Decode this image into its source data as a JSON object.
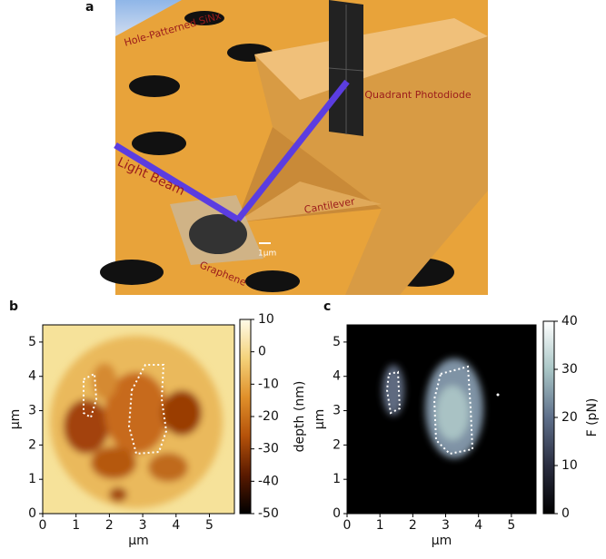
{
  "panel_labels": [
    "a",
    "b",
    "c"
  ],
  "illustration": {
    "labels": [
      "Hole-Patterned SiNx",
      "Quadrant Photodiode",
      "Light Beam",
      "Cantilever",
      "Graphene",
      "1µm"
    ]
  },
  "chart_data": [
    {
      "type": "heatmap",
      "xlabel": "µm",
      "ylabel": "µm",
      "xlim": [
        0,
        5.75
      ],
      "ylim": [
        0,
        5.5
      ],
      "xticks": [
        0,
        1,
        2,
        3,
        4,
        5
      ],
      "yticks": [
        0,
        1,
        2,
        3,
        4,
        5
      ],
      "colorbar": {
        "label": "depth (nm)",
        "lim": [
          -50,
          10
        ],
        "ticks": [
          10,
          0,
          -10,
          -20,
          -30,
          -40,
          -50
        ],
        "colors": [
          "#000000",
          "#5a1a00",
          "#b5520a",
          "#e0902a",
          "#f4d27a",
          "#fffbe8"
        ]
      }
    },
    {
      "type": "heatmap",
      "xlabel": "µm",
      "ylabel": "µm",
      "xlim": [
        0,
        5.75
      ],
      "ylim": [
        0,
        5.5
      ],
      "xticks": [
        0,
        1,
        2,
        3,
        4,
        5
      ],
      "yticks": [
        0,
        1,
        2,
        3,
        4,
        5
      ],
      "colorbar": {
        "label": "F (pN)",
        "lim": [
          0,
          40
        ],
        "ticks": [
          0,
          10,
          20,
          30,
          40
        ],
        "colors": [
          "#000000",
          "#2a2d40",
          "#5e6f8a",
          "#a9c6c6",
          "#ffffff"
        ]
      }
    }
  ]
}
